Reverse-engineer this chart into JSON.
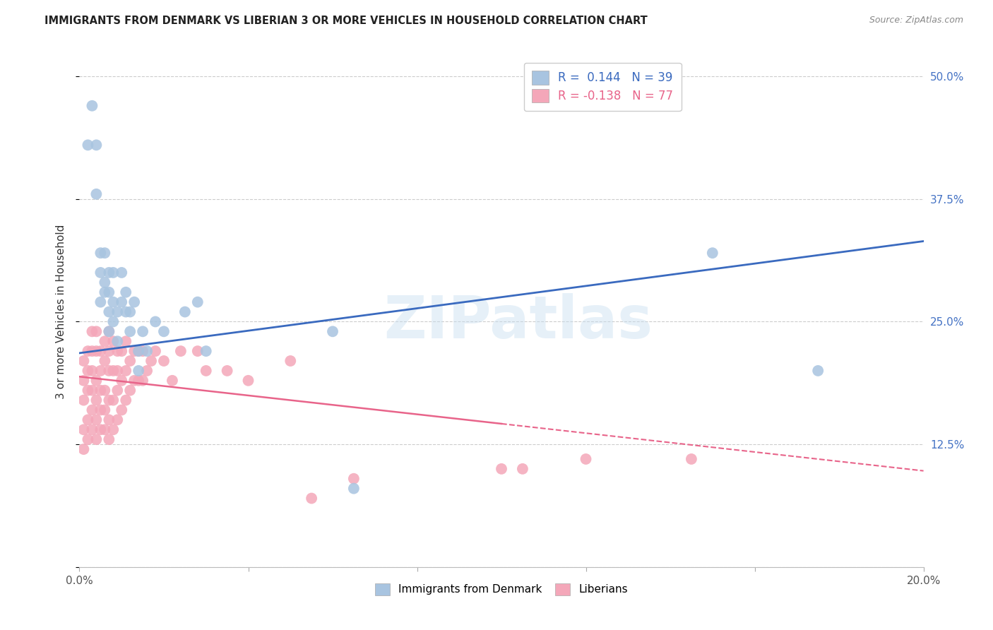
{
  "title": "IMMIGRANTS FROM DENMARK VS LIBERIAN 3 OR MORE VEHICLES IN HOUSEHOLD CORRELATION CHART",
  "source": "Source: ZipAtlas.com",
  "ylabel": "3 or more Vehicles in Household",
  "y_ticks": [
    0.0,
    0.125,
    0.25,
    0.375,
    0.5
  ],
  "y_tick_labels_right": [
    "",
    "12.5%",
    "25.0%",
    "37.5%",
    "50.0%"
  ],
  "x_ticks": [
    0.0,
    0.04,
    0.08,
    0.12,
    0.16,
    0.2
  ],
  "x_tick_labels": [
    "0.0%",
    "",
    "",
    "",
    "",
    "20.0%"
  ],
  "denmark_R": 0.144,
  "denmark_N": 39,
  "liberian_R": -0.138,
  "liberian_N": 77,
  "denmark_color": "#a8c4e0",
  "liberian_color": "#f4a7b9",
  "denmark_line_color": "#3a6abf",
  "liberian_line_color": "#e8648a",
  "watermark": "ZIPatlas",
  "background_color": "#ffffff",
  "legend_label_denmark": "Immigrants from Denmark",
  "legend_label_liberian": "Liberians",
  "denmark_points_x": [
    0.002,
    0.003,
    0.004,
    0.004,
    0.005,
    0.005,
    0.005,
    0.006,
    0.006,
    0.006,
    0.007,
    0.007,
    0.007,
    0.007,
    0.008,
    0.008,
    0.008,
    0.009,
    0.009,
    0.01,
    0.01,
    0.011,
    0.011,
    0.012,
    0.012,
    0.013,
    0.014,
    0.014,
    0.015,
    0.016,
    0.018,
    0.02,
    0.025,
    0.028,
    0.03,
    0.06,
    0.065,
    0.15,
    0.175
  ],
  "denmark_points_y": [
    0.43,
    0.47,
    0.38,
    0.43,
    0.3,
    0.32,
    0.27,
    0.28,
    0.29,
    0.32,
    0.24,
    0.26,
    0.28,
    0.3,
    0.25,
    0.27,
    0.3,
    0.23,
    0.26,
    0.27,
    0.3,
    0.26,
    0.28,
    0.24,
    0.26,
    0.27,
    0.2,
    0.22,
    0.24,
    0.22,
    0.25,
    0.24,
    0.26,
    0.27,
    0.22,
    0.24,
    0.08,
    0.32,
    0.2
  ],
  "liberian_points_x": [
    0.001,
    0.001,
    0.001,
    0.001,
    0.001,
    0.002,
    0.002,
    0.002,
    0.002,
    0.002,
    0.003,
    0.003,
    0.003,
    0.003,
    0.003,
    0.003,
    0.004,
    0.004,
    0.004,
    0.004,
    0.004,
    0.004,
    0.005,
    0.005,
    0.005,
    0.005,
    0.005,
    0.006,
    0.006,
    0.006,
    0.006,
    0.006,
    0.007,
    0.007,
    0.007,
    0.007,
    0.007,
    0.007,
    0.008,
    0.008,
    0.008,
    0.008,
    0.009,
    0.009,
    0.009,
    0.009,
    0.01,
    0.01,
    0.01,
    0.011,
    0.011,
    0.011,
    0.012,
    0.012,
    0.013,
    0.013,
    0.014,
    0.014,
    0.015,
    0.015,
    0.016,
    0.017,
    0.018,
    0.02,
    0.022,
    0.024,
    0.028,
    0.03,
    0.035,
    0.04,
    0.05,
    0.055,
    0.065,
    0.1,
    0.105,
    0.12,
    0.145
  ],
  "liberian_points_y": [
    0.12,
    0.14,
    0.17,
    0.19,
    0.21,
    0.13,
    0.15,
    0.18,
    0.2,
    0.22,
    0.14,
    0.16,
    0.18,
    0.2,
    0.22,
    0.24,
    0.13,
    0.15,
    0.17,
    0.19,
    0.22,
    0.24,
    0.14,
    0.16,
    0.18,
    0.2,
    0.22,
    0.14,
    0.16,
    0.18,
    0.21,
    0.23,
    0.13,
    0.15,
    0.17,
    0.2,
    0.22,
    0.24,
    0.14,
    0.17,
    0.2,
    0.23,
    0.15,
    0.18,
    0.2,
    0.22,
    0.16,
    0.19,
    0.22,
    0.17,
    0.2,
    0.23,
    0.18,
    0.21,
    0.19,
    0.22,
    0.19,
    0.22,
    0.19,
    0.22,
    0.2,
    0.21,
    0.22,
    0.21,
    0.19,
    0.22,
    0.22,
    0.2,
    0.2,
    0.19,
    0.21,
    0.07,
    0.09,
    0.1,
    0.1,
    0.11,
    0.11
  ]
}
